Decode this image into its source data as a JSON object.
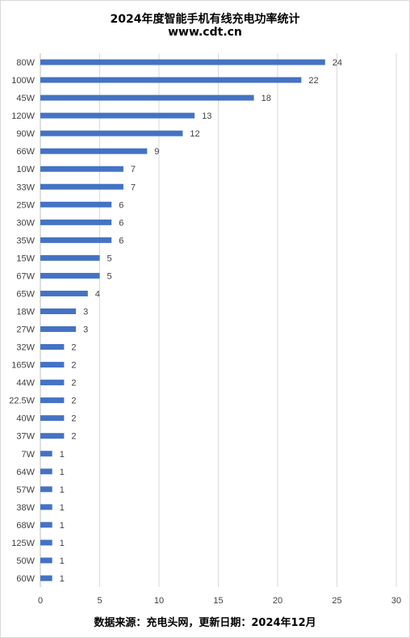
{
  "chart_data": {
    "type": "bar",
    "orientation": "horizontal",
    "title": "2024年度智能手机有线充电功率统计",
    "subtitle": "www.cdt.cn",
    "categories": [
      "80W",
      "100W",
      "45W",
      "120W",
      "90W",
      "66W",
      "10W",
      "33W",
      "25W",
      "30W",
      "35W",
      "15W",
      "67W",
      "65W",
      "18W",
      "27W",
      "32W",
      "165W",
      "44W",
      "22.5W",
      "40W",
      "37W",
      "7W",
      "64W",
      "57W",
      "38W",
      "68W",
      "125W",
      "50W",
      "60W"
    ],
    "values": [
      24,
      22,
      18,
      13,
      12,
      9,
      7,
      7,
      6,
      6,
      6,
      5,
      5,
      4,
      3,
      3,
      2,
      2,
      2,
      2,
      2,
      2,
      1,
      1,
      1,
      1,
      1,
      1,
      1,
      1
    ],
    "xlim": [
      0,
      30
    ],
    "xticks": [
      0,
      5,
      10,
      15,
      20,
      25,
      30
    ],
    "grid": true,
    "data_labels": true,
    "bar_color": "#4472c4",
    "grid_color": "#d9d9d9"
  },
  "footer": {
    "source": "数据来源：充电头网，更新日期：2024年12月"
  }
}
